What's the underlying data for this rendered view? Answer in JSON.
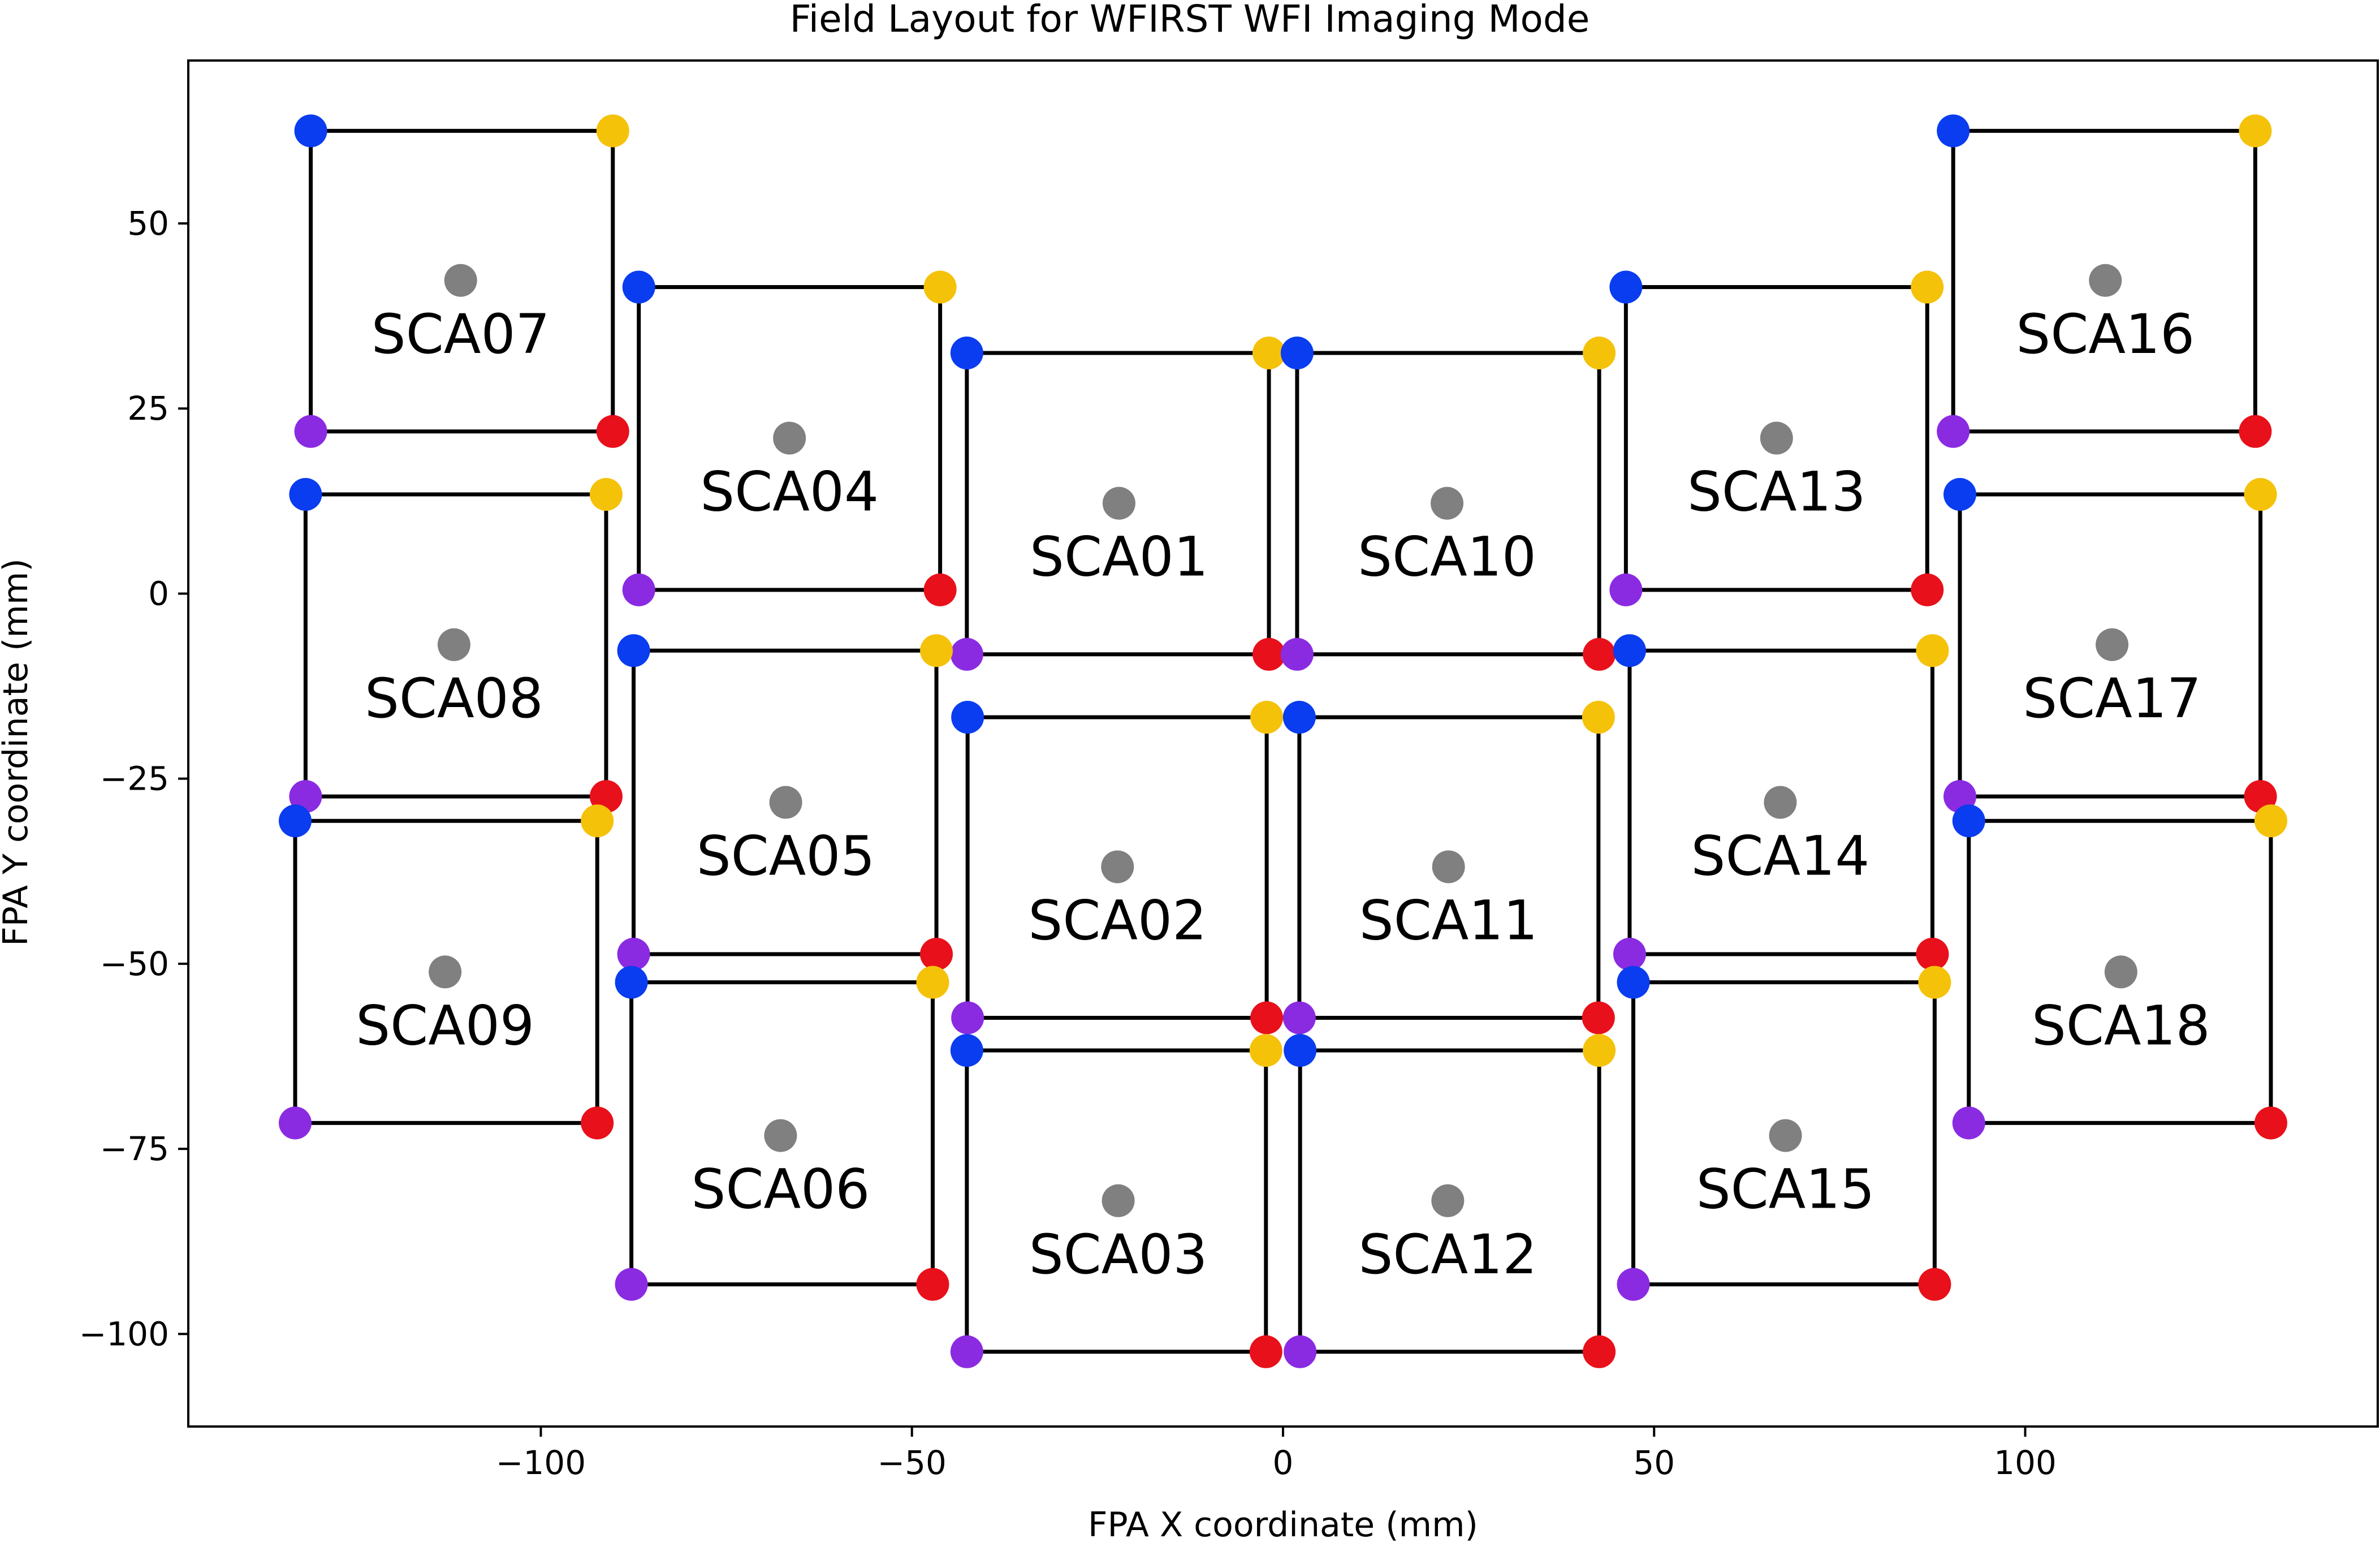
{
  "chart_data": {
    "type": "scatter",
    "title": "Field Layout for WFIRST WFI Imaging Mode",
    "xlabel": "FPA X coordinate (mm)",
    "ylabel": "FPA Y coordinate (mm)",
    "xlim": [
      -147.5,
      147.5
    ],
    "ylim": [
      -112.5,
      72.0
    ],
    "xticks": [
      -100,
      -50,
      0,
      50,
      100
    ],
    "xtick_labels": [
      "−100",
      "−50",
      "0",
      "50",
      "100"
    ],
    "yticks": [
      -100,
      -75,
      -50,
      -25,
      0,
      25,
      50
    ],
    "ytick_labels": [
      "−100",
      "−75",
      "−50",
      "−25",
      "0",
      "25",
      "50"
    ],
    "grid": false,
    "legend": "none",
    "colors": {
      "center": "#808080",
      "upper_left": "#0a3cf0",
      "upper_right": "#f5c20a",
      "lower_right": "#e8101a",
      "lower_left": "#8a2be2",
      "outline": "#000000"
    },
    "scas": [
      {
        "name": "SCA01",
        "center": [
          -22.1,
          12.2
        ],
        "x_left": -42.6,
        "x_right": -1.9,
        "y_top": 32.5,
        "y_bottom": -8.2
      },
      {
        "name": "SCA02",
        "center": [
          -22.3,
          -36.9
        ],
        "x_left": -42.5,
        "x_right": -2.2,
        "y_top": -16.7,
        "y_bottom": -57.3
      },
      {
        "name": "SCA03",
        "center": [
          -22.2,
          -82.0
        ],
        "x_left": -42.6,
        "x_right": -2.3,
        "y_top": -61.7,
        "y_bottom": -102.4
      },
      {
        "name": "SCA04",
        "center": [
          -66.5,
          21.0
        ],
        "x_left": -86.8,
        "x_right": -46.2,
        "y_top": 41.4,
        "y_bottom": 0.5
      },
      {
        "name": "SCA05",
        "center": [
          -67.0,
          -28.2
        ],
        "x_left": -87.5,
        "x_right": -46.7,
        "y_top": -7.7,
        "y_bottom": -48.7
      },
      {
        "name": "SCA06",
        "center": [
          -67.7,
          -73.2
        ],
        "x_left": -87.8,
        "x_right": -47.2,
        "y_top": -52.5,
        "y_bottom": -93.3
      },
      {
        "name": "SCA07",
        "center": [
          -110.8,
          42.3
        ],
        "x_left": -131.0,
        "x_right": -90.3,
        "y_top": 62.5,
        "y_bottom": 21.9
      },
      {
        "name": "SCA08",
        "center": [
          -111.7,
          -6.9
        ],
        "x_left": -131.7,
        "x_right": -91.2,
        "y_top": 13.4,
        "y_bottom": -27.4
      },
      {
        "name": "SCA09",
        "center": [
          -112.9,
          -51.1
        ],
        "x_left": -133.1,
        "x_right": -92.4,
        "y_top": -30.7,
        "y_bottom": -71.5
      },
      {
        "name": "SCA10",
        "center": [
          22.1,
          12.2
        ],
        "x_left": 1.9,
        "x_right": 42.6,
        "y_top": 32.5,
        "y_bottom": -8.2
      },
      {
        "name": "SCA11",
        "center": [
          22.3,
          -36.9
        ],
        "x_left": 2.2,
        "x_right": 42.5,
        "y_top": -16.7,
        "y_bottom": -57.3
      },
      {
        "name": "SCA12",
        "center": [
          22.2,
          -82.0
        ],
        "x_left": 2.3,
        "x_right": 42.6,
        "y_top": -61.7,
        "y_bottom": -102.4
      },
      {
        "name": "SCA13",
        "center": [
          66.5,
          21.0
        ],
        "x_left": 46.2,
        "x_right": 86.8,
        "y_top": 41.4,
        "y_bottom": 0.5
      },
      {
        "name": "SCA14",
        "center": [
          67.0,
          -28.2
        ],
        "x_left": 46.7,
        "x_right": 87.5,
        "y_top": -7.7,
        "y_bottom": -48.7
      },
      {
        "name": "SCA15",
        "center": [
          67.7,
          -73.2
        ],
        "x_left": 47.2,
        "x_right": 87.8,
        "y_top": -52.5,
        "y_bottom": -93.3
      },
      {
        "name": "SCA16",
        "center": [
          110.8,
          42.3
        ],
        "x_left": 90.3,
        "x_right": 131.0,
        "y_top": 62.5,
        "y_bottom": 21.9
      },
      {
        "name": "SCA17",
        "center": [
          111.7,
          -6.9
        ],
        "x_left": 91.2,
        "x_right": 131.7,
        "y_top": 13.4,
        "y_bottom": -27.4
      },
      {
        "name": "SCA18",
        "center": [
          112.9,
          -51.1
        ],
        "x_left": 92.4,
        "x_right": 133.1,
        "y_top": -30.7,
        "y_bottom": -71.5
      }
    ]
  }
}
